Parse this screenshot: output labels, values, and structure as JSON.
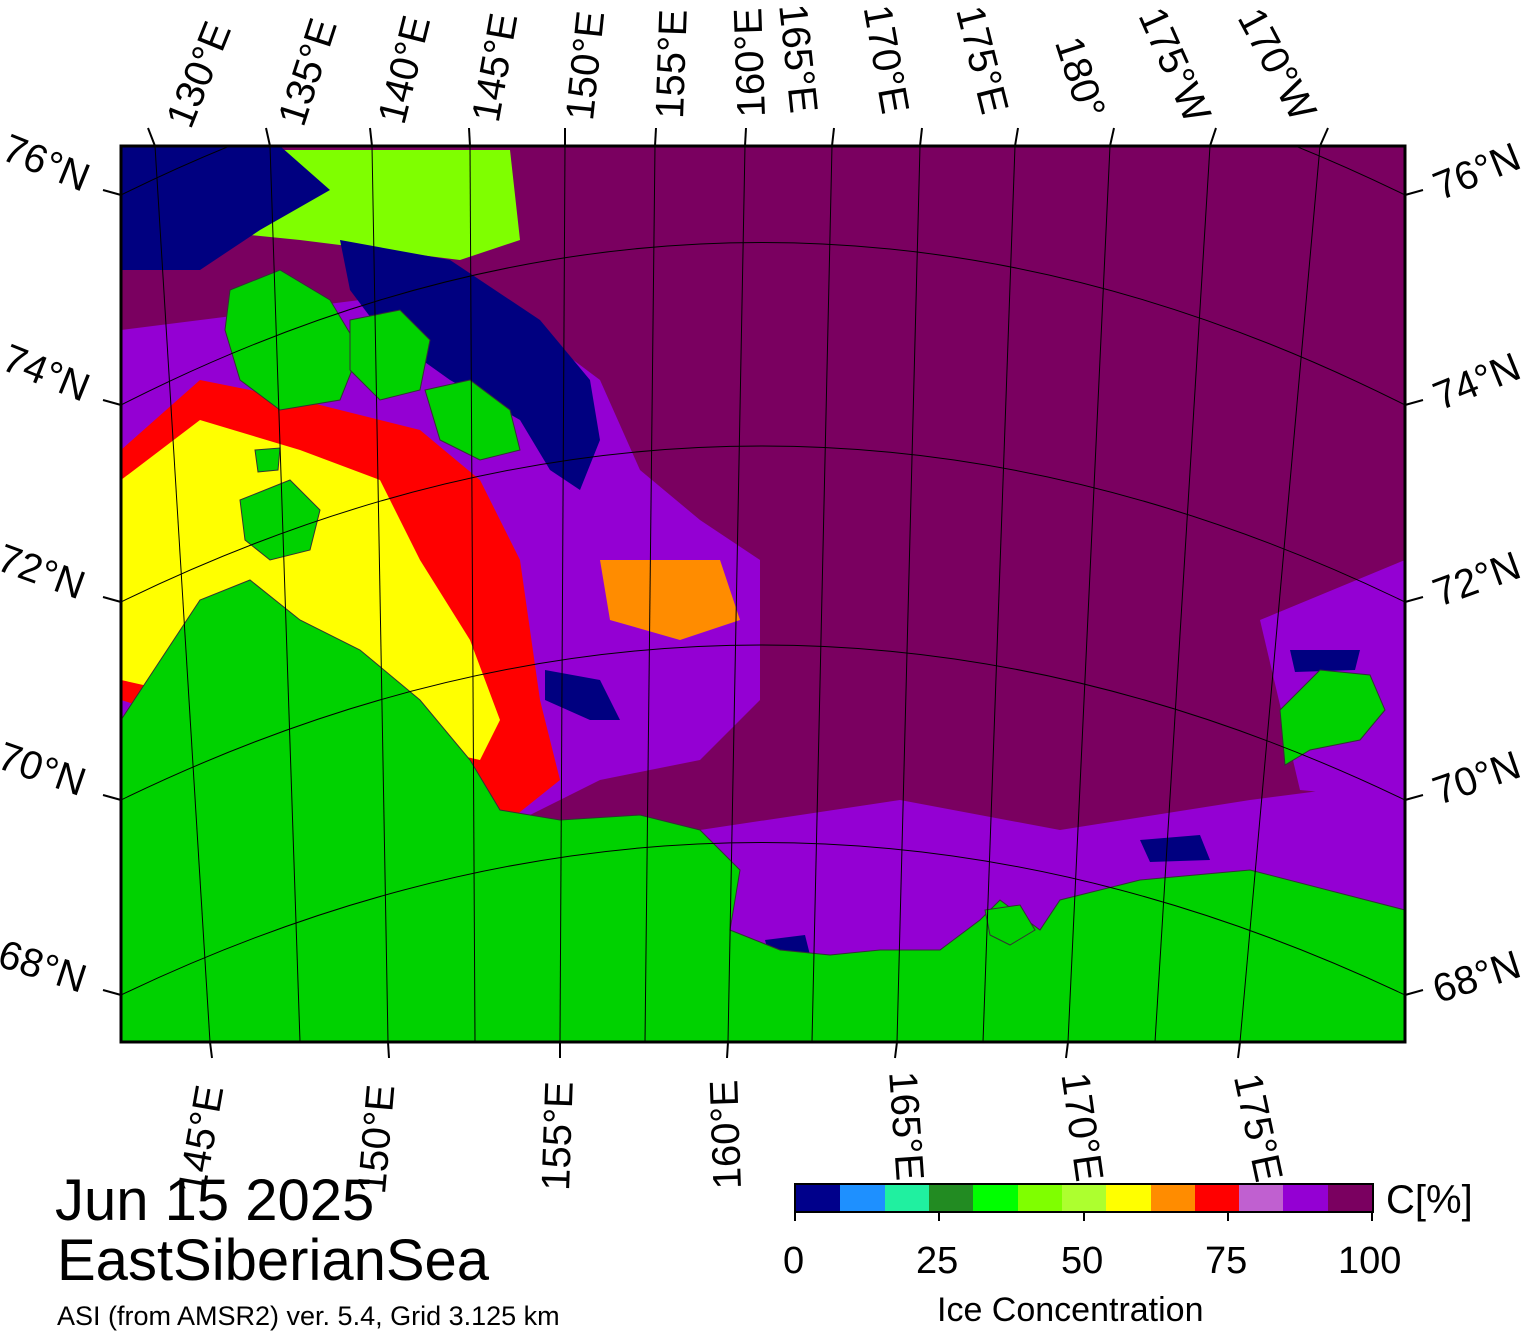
{
  "header": {
    "date": "Jun 15 2025",
    "region": "EastSiberianSea",
    "source": "ASI (from AMSR2) ver. 5.4,  Grid 3.125 km"
  },
  "map": {
    "top_lon_labels": [
      "130°E",
      "135°E",
      "140°E",
      "145°E",
      "150°E",
      "155°E",
      "160°E",
      "165°E",
      "170°E",
      "175°E",
      "180°",
      "175°W",
      "170°W"
    ],
    "bottom_lon_labels": [
      "145°E",
      "150°E",
      "155°E",
      "160°E",
      "165°E",
      "170°E",
      "175°E"
    ],
    "left_lat_labels": [
      "76°N",
      "74°N",
      "72°N",
      "70°N",
      "68°N"
    ],
    "right_lat_labels": [
      "76°N",
      "74°N",
      "72°N",
      "70°N",
      "68°N"
    ]
  },
  "legend": {
    "title": "Ice Concentration",
    "unit": "C[%]",
    "ticks": [
      "0",
      "25",
      "50",
      "75",
      "100"
    ],
    "colors": [
      "#00008b",
      "#1e90ff",
      "#20f0a0",
      "#228b22",
      "#00ff00",
      "#7fff00",
      "#adff2f",
      "#ffff00",
      "#ff8c00",
      "#ff0000",
      "#c060d0",
      "#9400d3",
      "#7a0060"
    ]
  },
  "colors": {
    "land": "#00d200",
    "open_water": "#000080",
    "full_ice": "#7a0060"
  }
}
